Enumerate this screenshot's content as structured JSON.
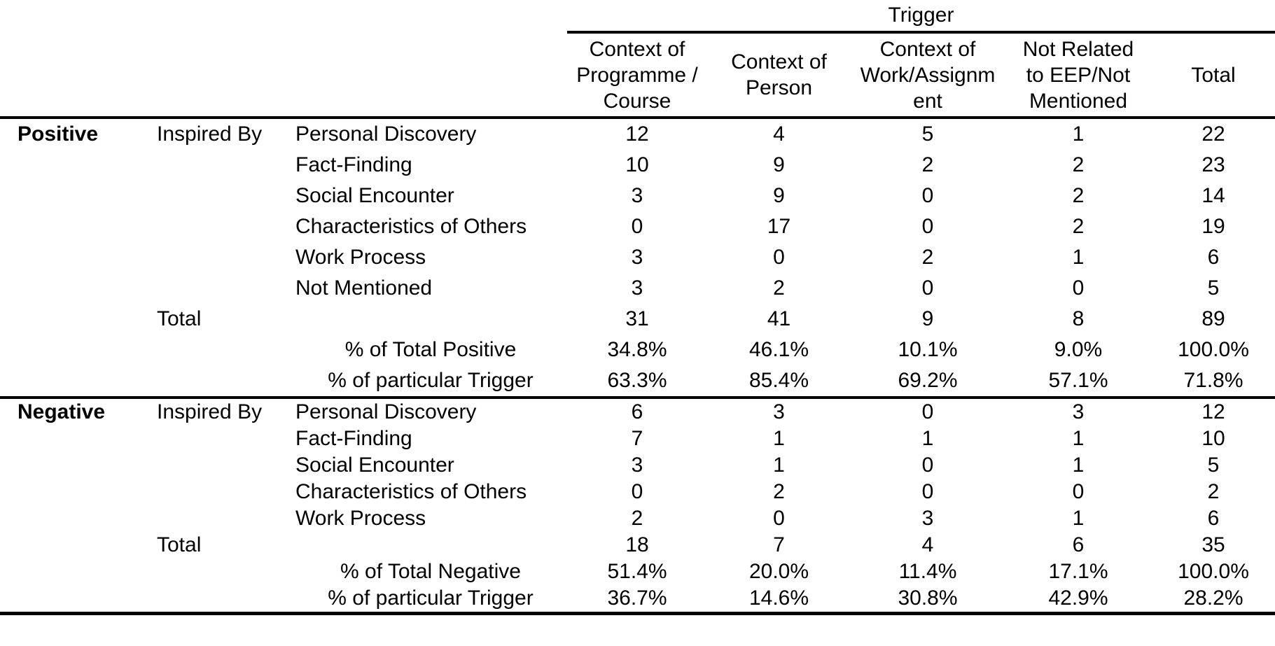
{
  "colors": {
    "text": "#000000",
    "background": "#ffffff",
    "rule": "#000000"
  },
  "table": {
    "spanner_label": "Trigger",
    "column_headers": [
      "Context of\nProgramme /\nCourse",
      "Context of\nPerson",
      "Context of\nWork/Assignm\nent",
      "Not Related\nto EEP/Not\nMentioned",
      "Total"
    ],
    "blocks": [
      {
        "group_label": "Positive",
        "sub_label": "Inspired By",
        "category_rows": [
          {
            "label": "Personal Discovery",
            "values": [
              "12",
              "4",
              "5",
              "1",
              "22"
            ]
          },
          {
            "label": "Fact-Finding",
            "values": [
              "10",
              "9",
              "2",
              "2",
              "23"
            ]
          },
          {
            "label": "Social Encounter",
            "values": [
              "3",
              "9",
              "0",
              "2",
              "14"
            ]
          },
          {
            "label": "Characteristics of Others",
            "values": [
              "0",
              "17",
              "0",
              "2",
              "19"
            ]
          },
          {
            "label": "Work Process",
            "values": [
              "3",
              "0",
              "2",
              "1",
              "6"
            ]
          },
          {
            "label": "Not Mentioned",
            "values": [
              "3",
              "2",
              "0",
              "0",
              "5"
            ]
          }
        ],
        "total_row": {
          "label": "Total",
          "values": [
            "31",
            "41",
            "9",
            "8",
            "89"
          ]
        },
        "percent_rows": [
          {
            "label": "% of Total Positive",
            "values": [
              "34.8%",
              "46.1%",
              "10.1%",
              "9.0%",
              "100.0%"
            ]
          },
          {
            "label": "% of particular Trigger",
            "values": [
              "63.3%",
              "85.4%",
              "69.2%",
              "57.1%",
              "71.8%"
            ]
          }
        ]
      },
      {
        "group_label": "Negative",
        "sub_label": "Inspired By",
        "category_rows": [
          {
            "label": "Personal Discovery",
            "values": [
              "6",
              "3",
              "0",
              "3",
              "12"
            ]
          },
          {
            "label": "Fact-Finding",
            "values": [
              "7",
              "1",
              "1",
              "1",
              "10"
            ]
          },
          {
            "label": "Social Encounter",
            "values": [
              "3",
              "1",
              "0",
              "1",
              "5"
            ]
          },
          {
            "label": "Characteristics of Others",
            "values": [
              "0",
              "2",
              "0",
              "0",
              "2"
            ]
          },
          {
            "label": "Work Process",
            "values": [
              "2",
              "0",
              "3",
              "1",
              "6"
            ]
          }
        ],
        "total_row": {
          "label": "Total",
          "values": [
            "18",
            "7",
            "4",
            "6",
            "35"
          ]
        },
        "percent_rows": [
          {
            "label": "% of Total Negative",
            "values": [
              "51.4%",
              "20.0%",
              "11.4%",
              "17.1%",
              "100.0%"
            ]
          },
          {
            "label": "% of particular Trigger",
            "values": [
              "36.7%",
              "14.6%",
              "30.8%",
              "42.9%",
              "28.2%"
            ]
          }
        ]
      }
    ]
  }
}
